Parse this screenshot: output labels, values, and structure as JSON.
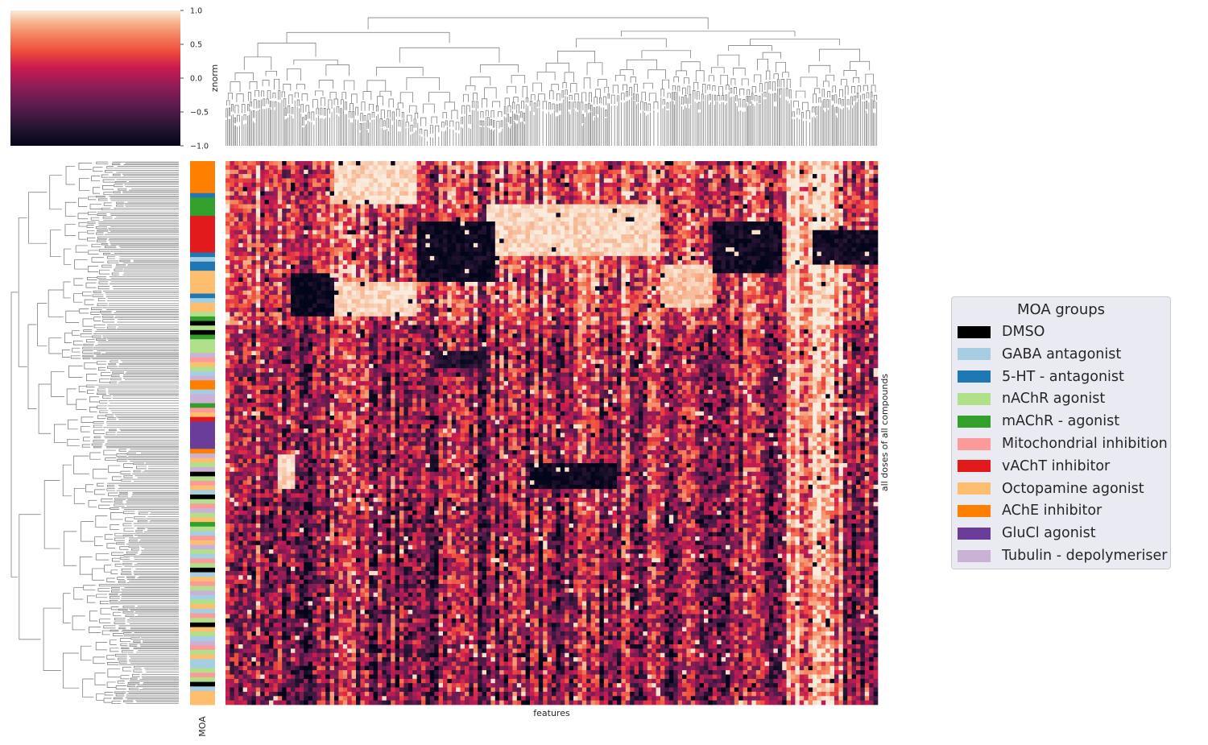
{
  "chart_data": {
    "type": "heatmap",
    "title": "",
    "xlabel": "features",
    "ylabel": "all doses of all compounds",
    "row_color_label": "MOA",
    "colorbar": {
      "label": "znorm",
      "range": [
        -1.0,
        1.0
      ],
      "ticks": [
        "−1.0",
        "−0.5",
        "0.0",
        "0.5",
        "1.0"
      ],
      "colormap": "rocket"
    },
    "dendrograms": [
      "rows",
      "columns"
    ],
    "legend": {
      "title": "MOA groups",
      "placement": "right",
      "entries": [
        {
          "label": "DMSO",
          "color": "#000000"
        },
        {
          "label": "GABA antagonist",
          "color": "#a6cee3"
        },
        {
          "label": "5-HT - antagonist",
          "color": "#1f78b4"
        },
        {
          "label": "nAChR agonist",
          "color": "#b2df8a"
        },
        {
          "label": "mAChR - agonist",
          "color": "#33a02c"
        },
        {
          "label": "Mitochondrial inhibition",
          "color": "#fb9a99"
        },
        {
          "label": "vAChT inhibitor",
          "color": "#e31a1c"
        },
        {
          "label": "Octopamine agonist",
          "color": "#fdbf6f"
        },
        {
          "label": "AChE inhibitor",
          "color": "#ff7f00"
        },
        {
          "label": "GluCl agonist",
          "color": "#6a3d9a"
        },
        {
          "label": "Tubulin - depolymeriser",
          "color": "#cab2d6"
        }
      ]
    }
  }
}
